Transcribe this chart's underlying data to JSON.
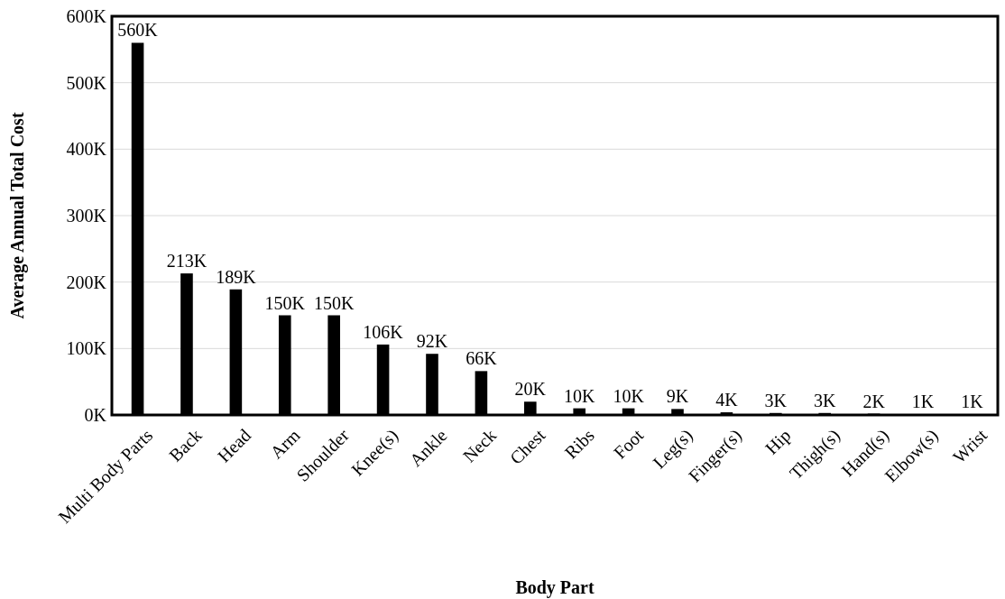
{
  "chart_data": {
    "type": "bar",
    "xlabel": "Body Part",
    "ylabel": "Average Annual Total Cost",
    "categories": [
      "Multi Body Parts",
      "Back",
      "Head",
      "Arm",
      "Shoulder",
      "Knee(s)",
      "Ankle",
      "Neck",
      "Chest",
      "Ribs",
      "Foot",
      "Leg(s)",
      "Finger(s)",
      "Hip",
      "Thigh(s)",
      "Hand(s)",
      "Elbow(s)",
      "Wrist"
    ],
    "values": [
      560000,
      213000,
      189000,
      150000,
      150000,
      106000,
      92000,
      66000,
      20000,
      10000,
      10000,
      9000,
      4000,
      3000,
      3000,
      2000,
      1000,
      1000
    ],
    "value_labels": [
      "560K",
      "213K",
      "189K",
      "150K",
      "150K",
      "106K",
      "92K",
      "66K",
      "20K",
      "10K",
      "10K",
      "9K",
      "4K",
      "3K",
      "3K",
      "2K",
      "1K",
      "1K"
    ],
    "color": "#000000",
    "ylim": [
      0,
      600000
    ],
    "yticks": [
      {
        "value": 0,
        "label": "0K"
      },
      {
        "value": 100000,
        "label": "100K"
      },
      {
        "value": 200000,
        "label": "200K"
      },
      {
        "value": 300000,
        "label": "300K"
      },
      {
        "value": 400000,
        "label": "400K"
      },
      {
        "value": 500000,
        "label": "500K"
      },
      {
        "value": 600000,
        "label": "600K"
      }
    ],
    "grid": "y"
  }
}
